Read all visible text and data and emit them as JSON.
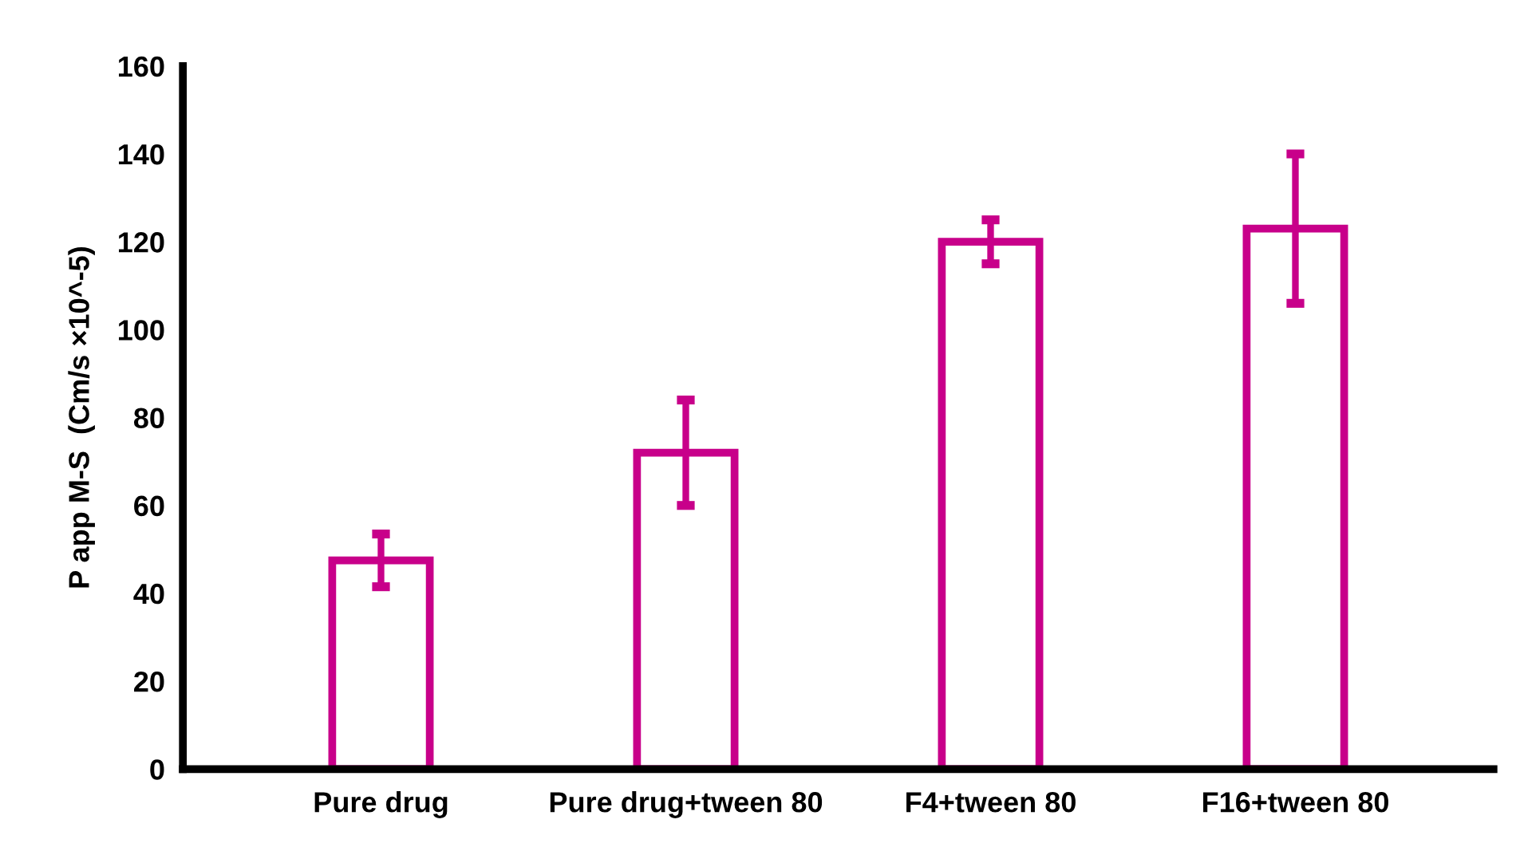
{
  "chart_data": {
    "type": "bar",
    "ylabel": "P app M-S  (Cm/s ×10^-5)",
    "categories": [
      "Pure drug",
      "Pure drug+tween 80",
      "F4+tween 80",
      "F16+tween 80"
    ],
    "values": [
      47.5,
      72,
      120,
      123
    ],
    "errors": [
      6,
      12,
      5,
      17
    ],
    "color": "#c8008a",
    "ylim": [
      0,
      160
    ],
    "yticks": [
      0,
      20,
      40,
      60,
      80,
      100,
      120,
      140,
      160
    ],
    "grid": false
  }
}
